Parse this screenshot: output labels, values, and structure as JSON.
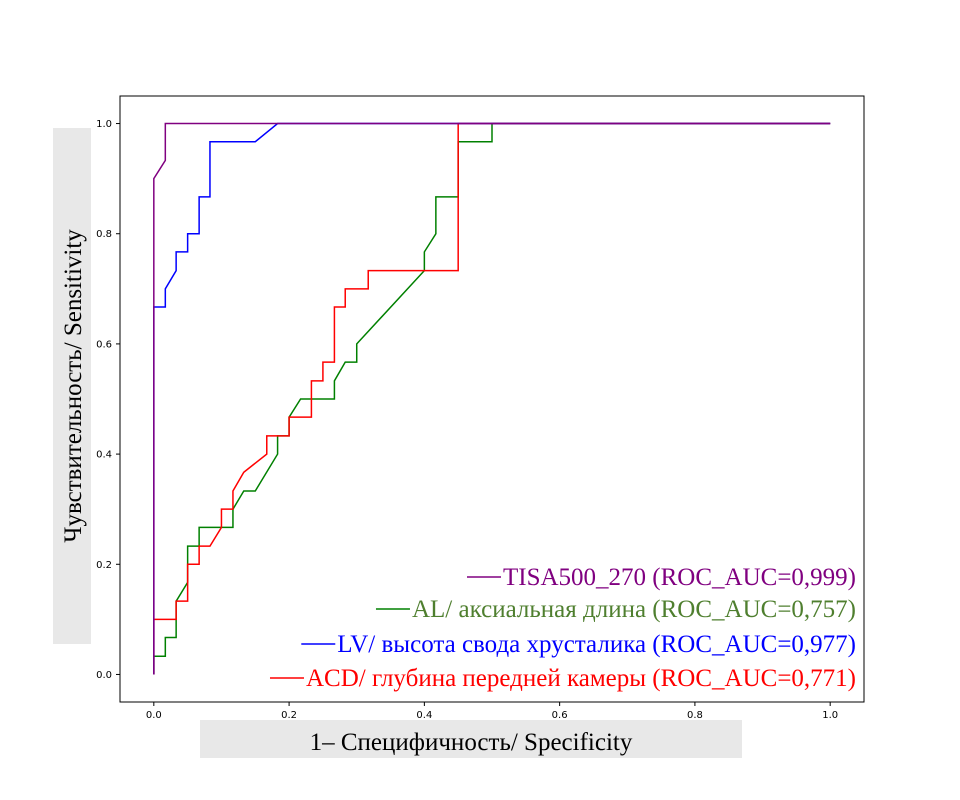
{
  "chart_data": {
    "type": "line",
    "xlabel": "1– Специфичность/ Specificity",
    "ylabel": "Чувствительность/ Sensitivity",
    "xlim": [
      -0.05,
      1.05
    ],
    "ylim": [
      -0.05,
      1.05
    ],
    "x_ticks": [
      0.0,
      0.2,
      0.4,
      0.6,
      0.8,
      1.0
    ],
    "y_ticks": [
      0.0,
      0.2,
      0.4,
      0.6,
      0.8,
      1.0
    ],
    "x_tick_labels": [
      "0.0",
      "0.2",
      "0.4",
      "0.6",
      "0.8",
      "1.0"
    ],
    "y_tick_labels": [
      "0.0",
      "0.2",
      "0.4",
      "0.6",
      "0.8",
      "1.0"
    ],
    "grid": false,
    "legend_position": "bottom-right",
    "series": [
      {
        "name": "TISA500_270 (ROC_AUC=0,999)",
        "color": "#800080",
        "x": [
          0,
          0,
          0.017,
          0.017,
          0.017,
          1.0
        ],
        "y": [
          0,
          0.9,
          0.933,
          0.967,
          1.0,
          1.0
        ]
      },
      {
        "name": "AL/ аксиальная  длина (ROC_AUC=0,757)",
        "color": "#008000",
        "x": [
          0,
          0,
          0.017,
          0.017,
          0.033,
          0.033,
          0.05,
          0.05,
          0.067,
          0.067,
          0.117,
          0.117,
          0.133,
          0.15,
          0.183,
          0.183,
          0.2,
          0.2,
          0.217,
          0.267,
          0.267,
          0.283,
          0.3,
          0.3,
          0.4,
          0.4,
          0.417,
          0.417,
          0.45,
          0.45,
          0.5,
          0.5,
          1.0
        ],
        "y": [
          0,
          0.033,
          0.033,
          0.067,
          0.067,
          0.133,
          0.167,
          0.233,
          0.233,
          0.267,
          0.267,
          0.3,
          0.333,
          0.333,
          0.4,
          0.433,
          0.433,
          0.467,
          0.5,
          0.5,
          0.533,
          0.567,
          0.567,
          0.6,
          0.733,
          0.767,
          0.8,
          0.867,
          0.867,
          0.967,
          0.967,
          1.0,
          1.0
        ]
      },
      {
        "name": "LV/ высота свода хрусталика (ROC_AUC=0,977)",
        "color": "#0000ff",
        "x": [
          0,
          0,
          0.017,
          0.017,
          0.033,
          0.033,
          0.05,
          0.05,
          0.067,
          0.067,
          0.083,
          0.083,
          0.15,
          0.183,
          1.0
        ],
        "y": [
          0,
          0.667,
          0.667,
          0.7,
          0.733,
          0.767,
          0.767,
          0.8,
          0.8,
          0.867,
          0.867,
          0.967,
          0.967,
          1.0,
          1.0
        ]
      },
      {
        "name": "ACD/ глубина передней камеры (ROC_AUC=0,771)",
        "color": "#ff0000",
        "x": [
          0,
          0,
          0.033,
          0.033,
          0.05,
          0.05,
          0.067,
          0.067,
          0.083,
          0.1,
          0.1,
          0.117,
          0.117,
          0.133,
          0.167,
          0.167,
          0.2,
          0.2,
          0.233,
          0.233,
          0.25,
          0.25,
          0.267,
          0.267,
          0.283,
          0.283,
          0.317,
          0.317,
          0.45,
          0.45,
          1.0
        ],
        "y": [
          0,
          0.1,
          0.1,
          0.133,
          0.133,
          0.2,
          0.2,
          0.233,
          0.233,
          0.267,
          0.3,
          0.3,
          0.333,
          0.367,
          0.4,
          0.433,
          0.433,
          0.467,
          0.467,
          0.533,
          0.533,
          0.567,
          0.567,
          0.667,
          0.667,
          0.7,
          0.7,
          0.733,
          0.733,
          1.0,
          1.0
        ]
      }
    ]
  },
  "legend_text_colors": [
    "#800080",
    "#4f7f2f",
    "#0000ff",
    "#ff0000"
  ],
  "label_box_color": "#e8e8e8"
}
